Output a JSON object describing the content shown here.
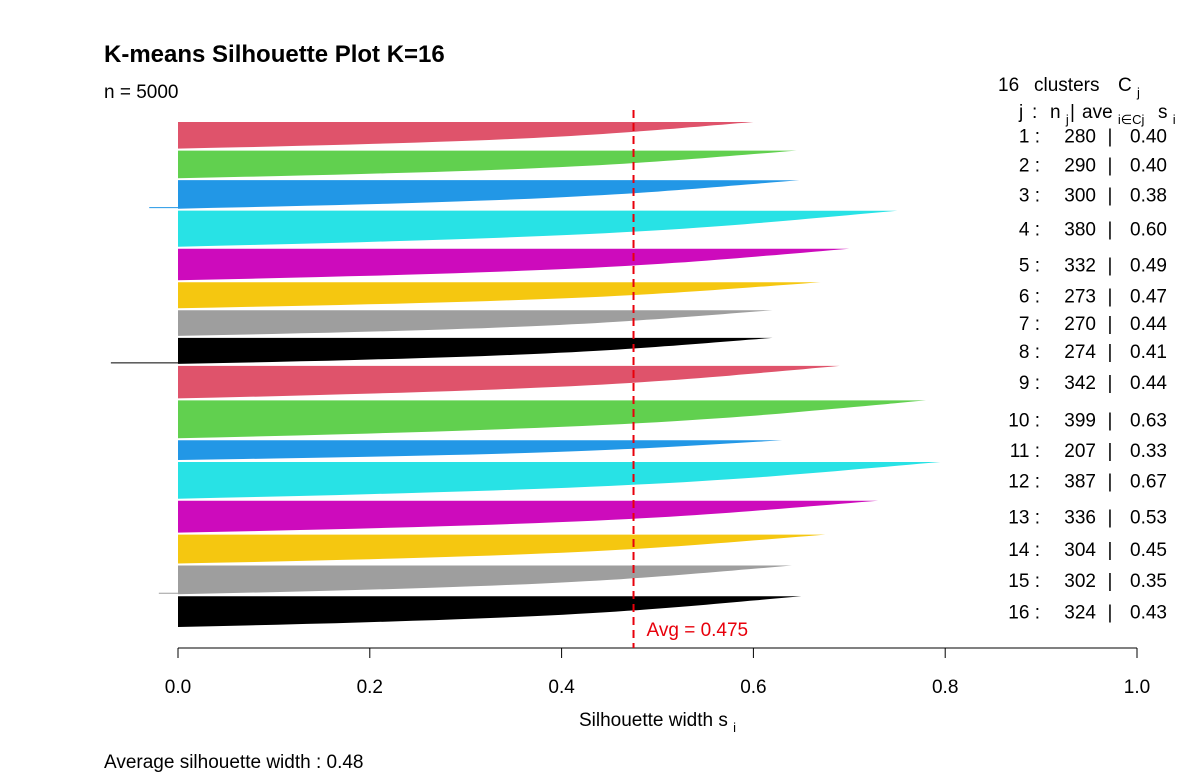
{
  "chart_data": {
    "type": "silhouette",
    "title": "K-means Silhouette Plot K=16",
    "n_label": "n = 5000",
    "legend_header": {
      "count": "16",
      "clusters_word": "clusters",
      "c": "C",
      "c_sub": "j",
      "j": "j",
      "n": "n",
      "n_sub": "j",
      "ave": "ave",
      "ave_sub": "i∈Cj",
      "s": "s",
      "s_sub": "i"
    },
    "xlabel_main": "Silhouette width s",
    "xlabel_sub": "i",
    "xlim": [
      0,
      1
    ],
    "xticks": [
      "0.0",
      "0.2",
      "0.4",
      "0.6",
      "0.8",
      "1.0"
    ],
    "avg_value": 0.475,
    "avg_label": "Avg = 0.475",
    "footer": "Average silhouette width :  0.48",
    "colors": {
      "avg_line": "#e8000b",
      "palette": [
        "#df536b",
        "#61d04f",
        "#2297e6",
        "#28e2e5",
        "#cd0bbc",
        "#f5c710",
        "#9e9e9e",
        "#000000"
      ]
    },
    "clusters": [
      {
        "j": 1,
        "n": 280,
        "ave": 0.4,
        "max": 0.6,
        "neg": 0,
        "j_label": "1 :",
        "n_label": "280",
        "ave_label": "0.40"
      },
      {
        "j": 2,
        "n": 290,
        "ave": 0.4,
        "max": 0.645,
        "neg": 0,
        "j_label": "2 :",
        "n_label": "290",
        "ave_label": "0.40"
      },
      {
        "j": 3,
        "n": 300,
        "ave": 0.38,
        "max": 0.648,
        "neg": 0.03,
        "j_label": "3 :",
        "n_label": "300",
        "ave_label": "0.38"
      },
      {
        "j": 4,
        "n": 380,
        "ave": 0.6,
        "max": 0.75,
        "neg": 0,
        "j_label": "4 :",
        "n_label": "380",
        "ave_label": "0.60"
      },
      {
        "j": 5,
        "n": 332,
        "ave": 0.49,
        "max": 0.7,
        "neg": 0,
        "j_label": "5 :",
        "n_label": "332",
        "ave_label": "0.49"
      },
      {
        "j": 6,
        "n": 273,
        "ave": 0.47,
        "max": 0.67,
        "neg": 0,
        "j_label": "6 :",
        "n_label": "273",
        "ave_label": "0.47"
      },
      {
        "j": 7,
        "n": 270,
        "ave": 0.44,
        "max": 0.62,
        "neg": 0,
        "j_label": "7 :",
        "n_label": "270",
        "ave_label": "0.44"
      },
      {
        "j": 8,
        "n": 274,
        "ave": 0.41,
        "max": 0.62,
        "neg": 0.07,
        "j_label": "8 :",
        "n_label": "274",
        "ave_label": "0.41"
      },
      {
        "j": 9,
        "n": 342,
        "ave": 0.44,
        "max": 0.69,
        "neg": 0,
        "j_label": "9 :",
        "n_label": "342",
        "ave_label": "0.44"
      },
      {
        "j": 10,
        "n": 399,
        "ave": 0.63,
        "max": 0.78,
        "neg": 0,
        "j_label": "10 :",
        "n_label": "399",
        "ave_label": "0.63"
      },
      {
        "j": 11,
        "n": 207,
        "ave": 0.33,
        "max": 0.63,
        "neg": 0,
        "j_label": "11 :",
        "n_label": "207",
        "ave_label": "0.33"
      },
      {
        "j": 12,
        "n": 387,
        "ave": 0.67,
        "max": 0.795,
        "neg": 0,
        "j_label": "12 :",
        "n_label": "387",
        "ave_label": "0.67"
      },
      {
        "j": 13,
        "n": 336,
        "ave": 0.53,
        "max": 0.73,
        "neg": 0,
        "j_label": "13 :",
        "n_label": "336",
        "ave_label": "0.53"
      },
      {
        "j": 14,
        "n": 304,
        "ave": 0.45,
        "max": 0.675,
        "neg": 0,
        "j_label": "14 :",
        "n_label": "304",
        "ave_label": "0.45"
      },
      {
        "j": 15,
        "n": 302,
        "ave": 0.35,
        "max": 0.64,
        "neg": 0.02,
        "j_label": "15 :",
        "n_label": "302",
        "ave_label": "0.35"
      },
      {
        "j": 16,
        "n": 324,
        "ave": 0.43,
        "max": 0.65,
        "neg": 0,
        "j_label": "16 :",
        "n_label": "324",
        "ave_label": "0.43"
      }
    ]
  }
}
